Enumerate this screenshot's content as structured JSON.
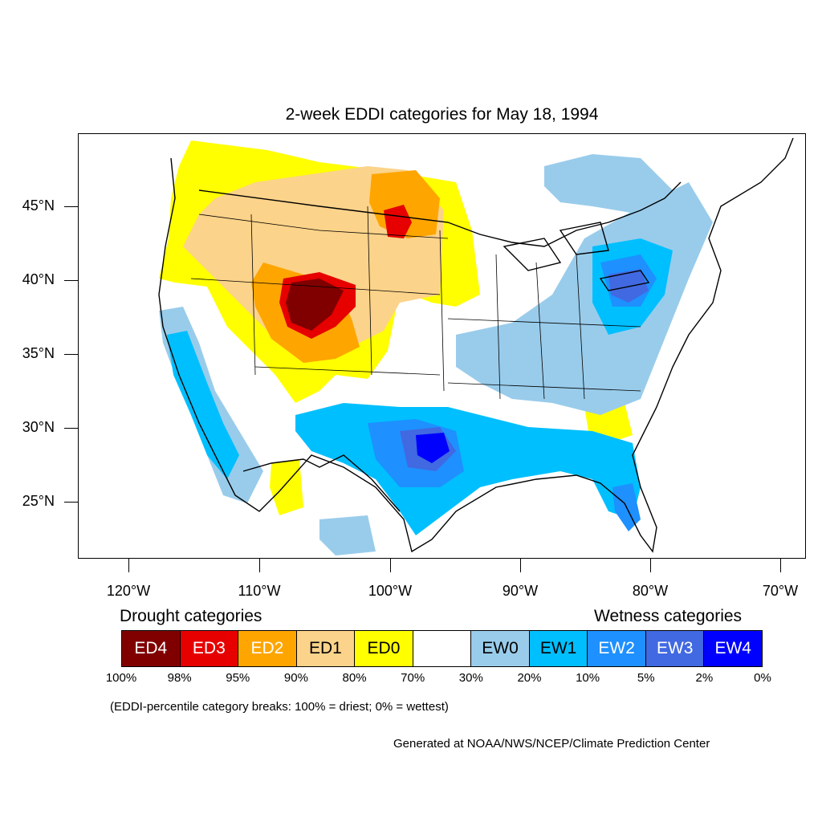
{
  "title": "2-week EDDI categories for May 18, 1994",
  "map": {
    "projection": "lambert-conformal-conus",
    "lat_ticks": [
      "45°N",
      "40°N",
      "35°N",
      "30°N",
      "25°N"
    ],
    "lon_ticks": [
      "120°W",
      "110°W",
      "100°W",
      "90°W",
      "80°W",
      "70°W"
    ],
    "regions": [
      {
        "area": "northern Rockies / northern Plains",
        "category": "ED1-ED2"
      },
      {
        "area": "North Dakota",
        "category": "ED2-ED3"
      },
      {
        "area": "Colorado / Wyoming",
        "category": "ED3-ED4"
      },
      {
        "area": "Pacific Northwest",
        "category": "ED0-ED1"
      },
      {
        "area": "Texas / Louisiana",
        "category": "EW1-EW4"
      },
      {
        "area": "Southeast / Florida",
        "category": "EW0-EW2"
      },
      {
        "area": "Northeast / Great Lakes",
        "category": "EW0-EW3"
      },
      {
        "area": "southern Great Basin / Southwest",
        "category": "neutral"
      }
    ]
  },
  "legend": {
    "drought_heading": "Drought categories",
    "wetness_heading": "Wetness categories",
    "categories": [
      {
        "label": "ED4",
        "color": "#800000",
        "text_color": "#ffffff"
      },
      {
        "label": "ED3",
        "color": "#e60000",
        "text_color": "#ffffff"
      },
      {
        "label": "ED2",
        "color": "#ffa500",
        "text_color": "#ffffff"
      },
      {
        "label": "ED1",
        "color": "#fcd38a",
        "text_color": "#000000"
      },
      {
        "label": "ED0",
        "color": "#ffff00",
        "text_color": "#000000"
      },
      {
        "label": "",
        "color": "#ffffff",
        "text_color": "#000000"
      },
      {
        "label": "EW0",
        "color": "#99cceb",
        "text_color": "#000000"
      },
      {
        "label": "EW1",
        "color": "#00bfff",
        "text_color": "#000000"
      },
      {
        "label": "EW2",
        "color": "#1e90ff",
        "text_color": "#ffffff"
      },
      {
        "label": "EW3",
        "color": "#4169e1",
        "text_color": "#ffffff"
      },
      {
        "label": "EW4",
        "color": "#0000ff",
        "text_color": "#ffffff"
      }
    ],
    "breaks": [
      "100%",
      "98%",
      "95%",
      "90%",
      "80%",
      "70%",
      "30%",
      "20%",
      "10%",
      "5%",
      "2%",
      "0%"
    ]
  },
  "note": "(EDDI-percentile category breaks: 100% = driest; 0% = wettest)",
  "credit": "Generated at NOAA/NWS/NCEP/Climate Prediction Center"
}
